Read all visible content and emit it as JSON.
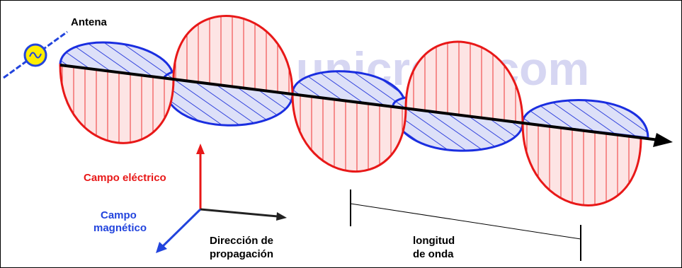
{
  "labels": {
    "antenna": "Antena",
    "watermark": "www.unicrom.com",
    "electric_field": "Campo eléctrico",
    "magnetic_field": [
      "Campo",
      "magnético"
    ],
    "propagation": [
      "Dirección de",
      "propagación"
    ],
    "wavelength": [
      "longitud",
      "de onda"
    ]
  }
}
